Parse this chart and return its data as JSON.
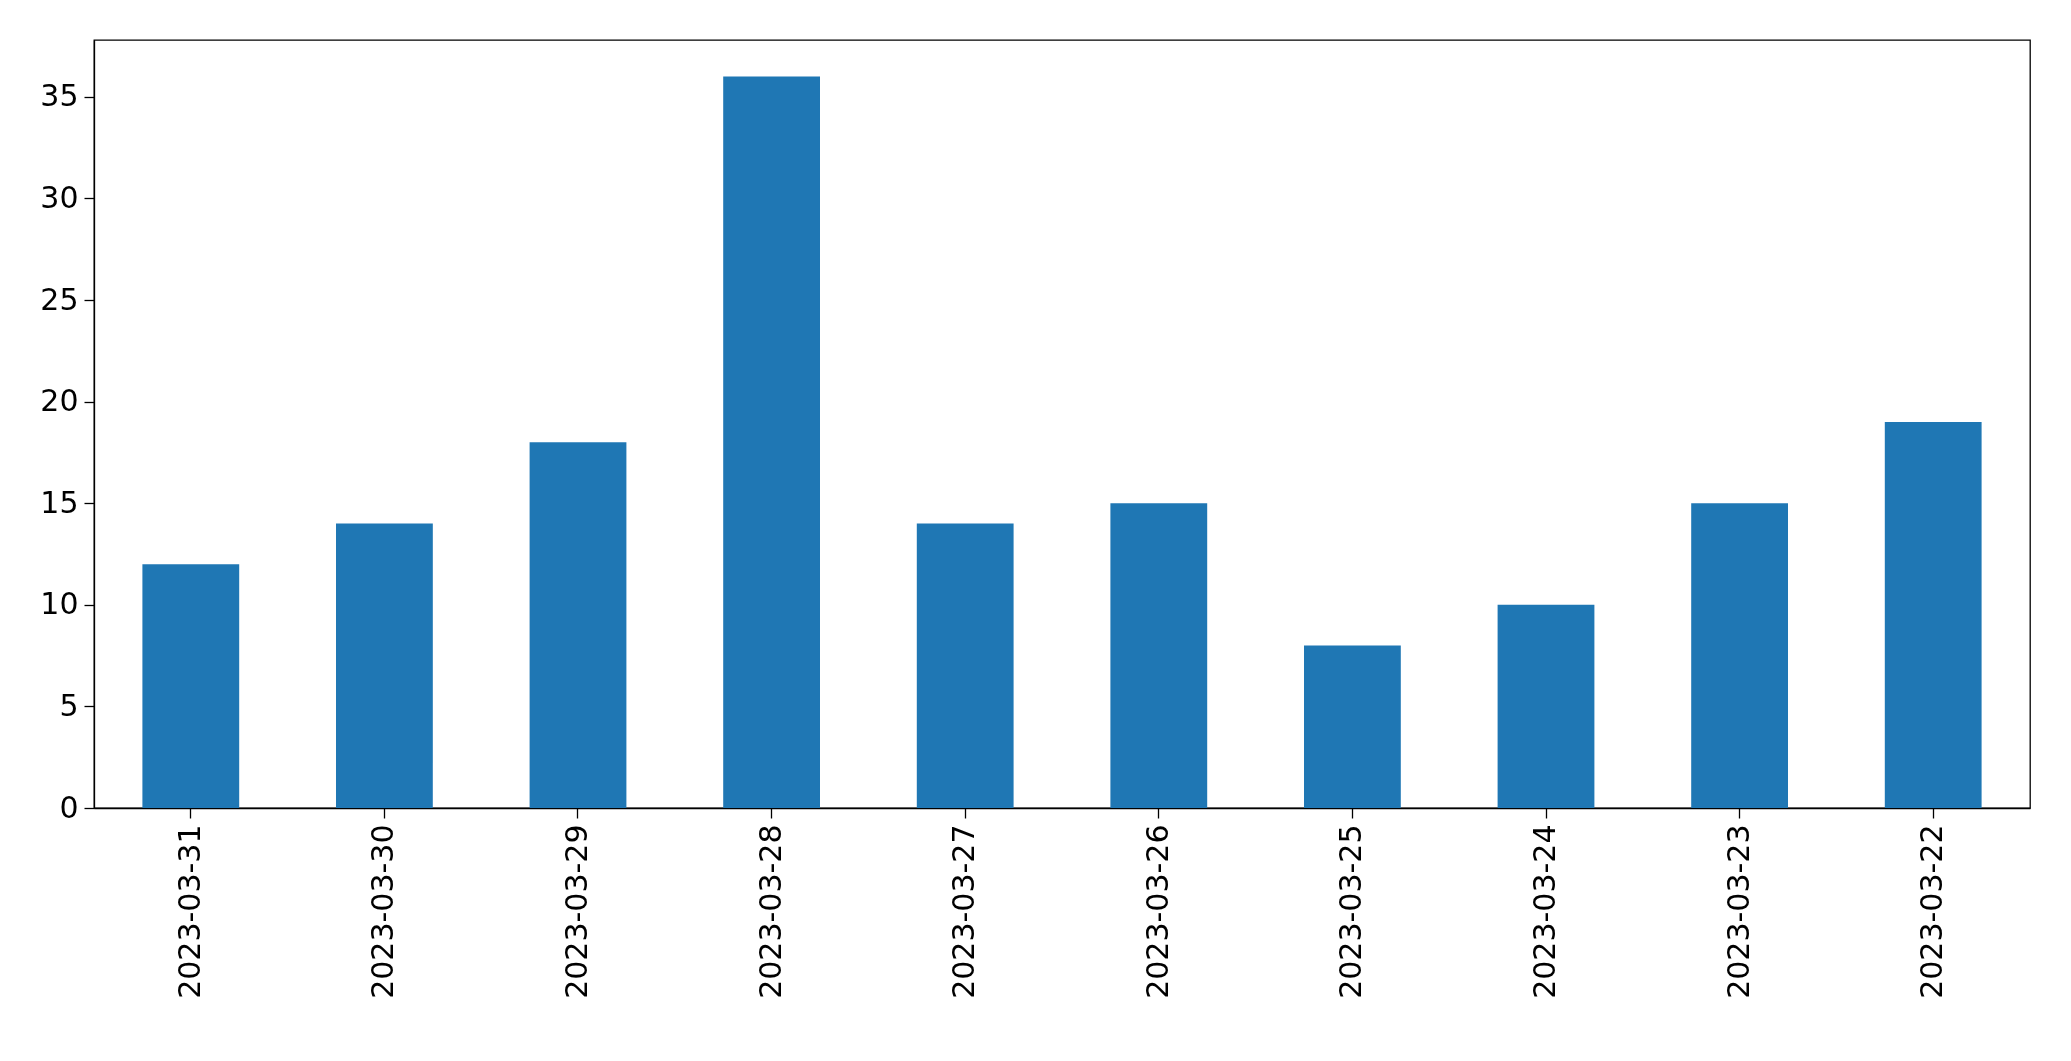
{
  "chart_data": {
    "type": "bar",
    "categories": [
      "2023-03-31",
      "2023-03-30",
      "2023-03-29",
      "2023-03-28",
      "2023-03-27",
      "2023-03-26",
      "2023-03-25",
      "2023-03-24",
      "2023-03-23",
      "2023-03-22"
    ],
    "values": [
      12,
      14,
      18,
      36,
      14,
      15,
      8,
      10,
      15,
      19
    ],
    "color": "#1f77b4",
    "ylim": [
      0,
      37.8
    ],
    "yticks": [
      0,
      5,
      10,
      15,
      20,
      25,
      30,
      35
    ],
    "grid": false
  }
}
